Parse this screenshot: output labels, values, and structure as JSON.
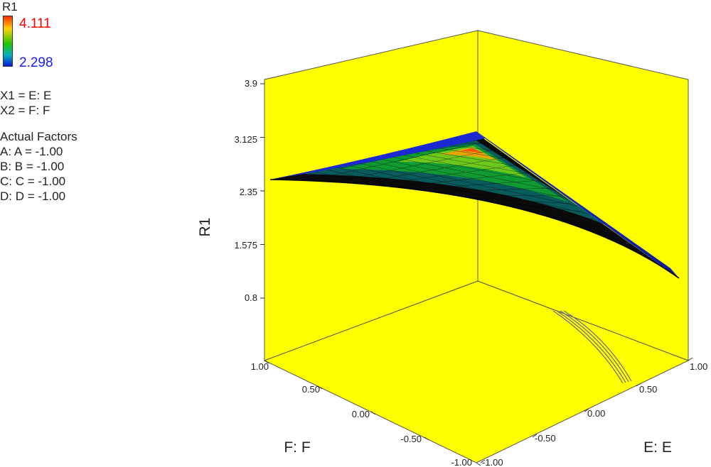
{
  "legend": {
    "title": "R1",
    "max_label": "4.111",
    "min_label": "2.298",
    "max_color": "#ff0000",
    "min_color": "#1a1aff"
  },
  "factors": {
    "x1": "X1 = E: E",
    "x2": "X2 = F: F",
    "actual_title": "Actual Factors",
    "items": [
      "A: A = -1.00",
      "B: B = -1.00",
      "C: C = -1.00",
      "D: D = -1.00"
    ]
  },
  "chart_data": {
    "type": "surface",
    "title": "",
    "zlabel": "R1",
    "xlabel": "E: E",
    "ylabel": "F: F",
    "z_ticks": [
      "0.8",
      "1.575",
      "2.35",
      "3.125",
      "3.9"
    ],
    "z_tick_values": [
      0.8,
      1.575,
      2.35,
      3.125,
      3.9
    ],
    "x_ticks": [
      "-1.00",
      "-0.50",
      "0.00",
      "0.50",
      "1.00"
    ],
    "y_ticks": [
      "-1.00",
      "-0.50",
      "0.00",
      "0.50",
      "1.00"
    ],
    "tick_values": [
      -1,
      -0.5,
      0,
      0.5,
      1
    ],
    "zlim": [
      0.8,
      3.9
    ],
    "xlim": [
      -1,
      1
    ],
    "ylim": [
      -1,
      1
    ],
    "background_color": "#ffff00",
    "surface": {
      "visible_range_color_min": 2.298,
      "visible_range_color_max": 4.111,
      "front_corner": {
        "E": -1,
        "F": -1,
        "R1": 2.35
      },
      "left_corner": {
        "E": -1,
        "F": 1,
        "R1": 2.35
      },
      "right_corner": {
        "E": 1,
        "F": -1,
        "R1": 0.8
      },
      "peak_corner": {
        "E": 1,
        "F": 1,
        "R1": 3.1
      }
    }
  }
}
